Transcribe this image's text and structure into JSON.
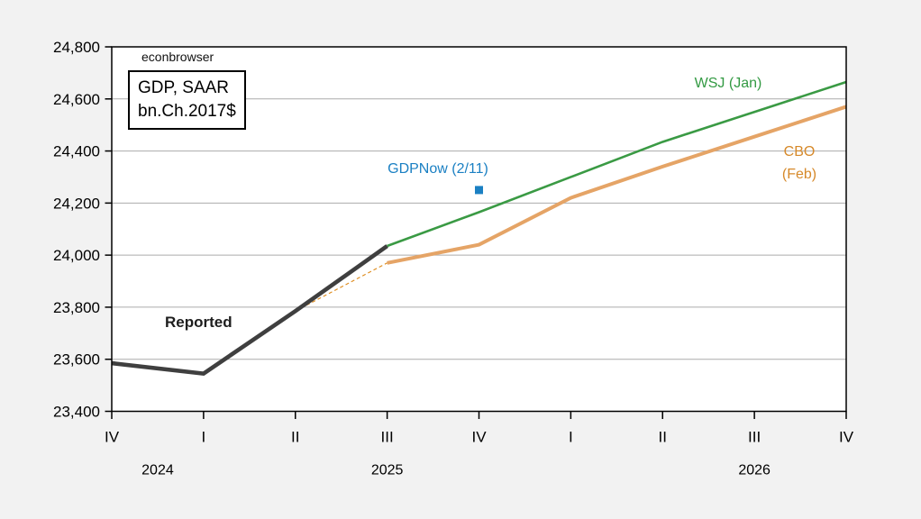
{
  "watermark": "econbrowser",
  "infobox": {
    "line1": "GDP, SAAR",
    "line2": "bn.Ch.2017$"
  },
  "annotations": {
    "reported": "Reported",
    "gdpnow": "GDPNow (2/11)",
    "wsj": "WSJ (Jan)",
    "cbo_line1": "CBO",
    "cbo_line2": "(Feb)"
  },
  "colors": {
    "background": "#f2f2f2",
    "plot_background": "#ffffff",
    "gridline": "#ababab",
    "axis": "#000000",
    "reported": "#3f3f3f",
    "wsj": "#3a9a44",
    "wsj_label": "#339a43",
    "cbo": "#e5a466",
    "cbo_dashed": "#de8c1e",
    "cbo_label": "#d6892a",
    "gdpnow": "#1b80c3"
  },
  "chart_data": {
    "type": "line",
    "title": "GDP, SAAR bn.Ch.2017$",
    "xlabel": "",
    "ylabel": "",
    "grid": "horizontal",
    "legend_position": "inline-annotations",
    "ylim": [
      23400,
      24800
    ],
    "ytick_step": 200,
    "yticks": [
      {
        "value": 23400,
        "label": "23,400"
      },
      {
        "value": 23600,
        "label": "23,600"
      },
      {
        "value": 23800,
        "label": "23,800"
      },
      {
        "value": 24000,
        "label": "24,000"
      },
      {
        "value": 24200,
        "label": "24,200"
      },
      {
        "value": 24400,
        "label": "24,400"
      },
      {
        "value": 24600,
        "label": "24,600"
      },
      {
        "value": 24800,
        "label": "24,800"
      }
    ],
    "x_categories": [
      "IV",
      "I",
      "II",
      "III",
      "IV",
      "I",
      "II",
      "III",
      "IV"
    ],
    "year_labels": [
      {
        "label": "2024",
        "index": 0.5
      },
      {
        "label": "2025",
        "index": 3
      },
      {
        "label": "2026",
        "index": 7
      }
    ],
    "series": [
      {
        "name": "CBO (Feb) pre-release dashed segment",
        "slug": "cbo-dashed-leadin-line",
        "color": "#de8c1e",
        "width": 1.2,
        "dash": [
          4,
          3
        ],
        "points": [
          [
            2,
            23785
          ],
          [
            3,
            23970
          ]
        ]
      },
      {
        "name": "Reported",
        "slug": "reported-line",
        "color": "#3f3f3f",
        "width": 4.6,
        "points": [
          [
            0,
            23585
          ],
          [
            1,
            23545
          ],
          [
            2,
            23785
          ],
          [
            3,
            24035
          ]
        ]
      },
      {
        "name": "CBO (Feb)",
        "slug": "cbo-line",
        "color": "#e5a466",
        "width": 4,
        "points": [
          [
            3,
            23970
          ],
          [
            4,
            24040
          ],
          [
            5,
            24220
          ],
          [
            6,
            24340
          ],
          [
            7,
            24455
          ],
          [
            8,
            24570
          ]
        ]
      },
      {
        "name": "WSJ (Jan)",
        "slug": "wsj-line",
        "color": "#3a9a44",
        "width": 2.6,
        "points": [
          [
            3,
            24035
          ],
          [
            4,
            24165
          ],
          [
            5,
            24300
          ],
          [
            6,
            24435
          ],
          [
            7,
            24550
          ],
          [
            8,
            24665
          ]
        ]
      },
      {
        "name": "GDPNow (2/11)",
        "slug": "gdpnow-point",
        "color": "#1b80c3",
        "marker": "square",
        "marker_size": 9,
        "points": [
          [
            4,
            24250
          ]
        ]
      }
    ]
  }
}
